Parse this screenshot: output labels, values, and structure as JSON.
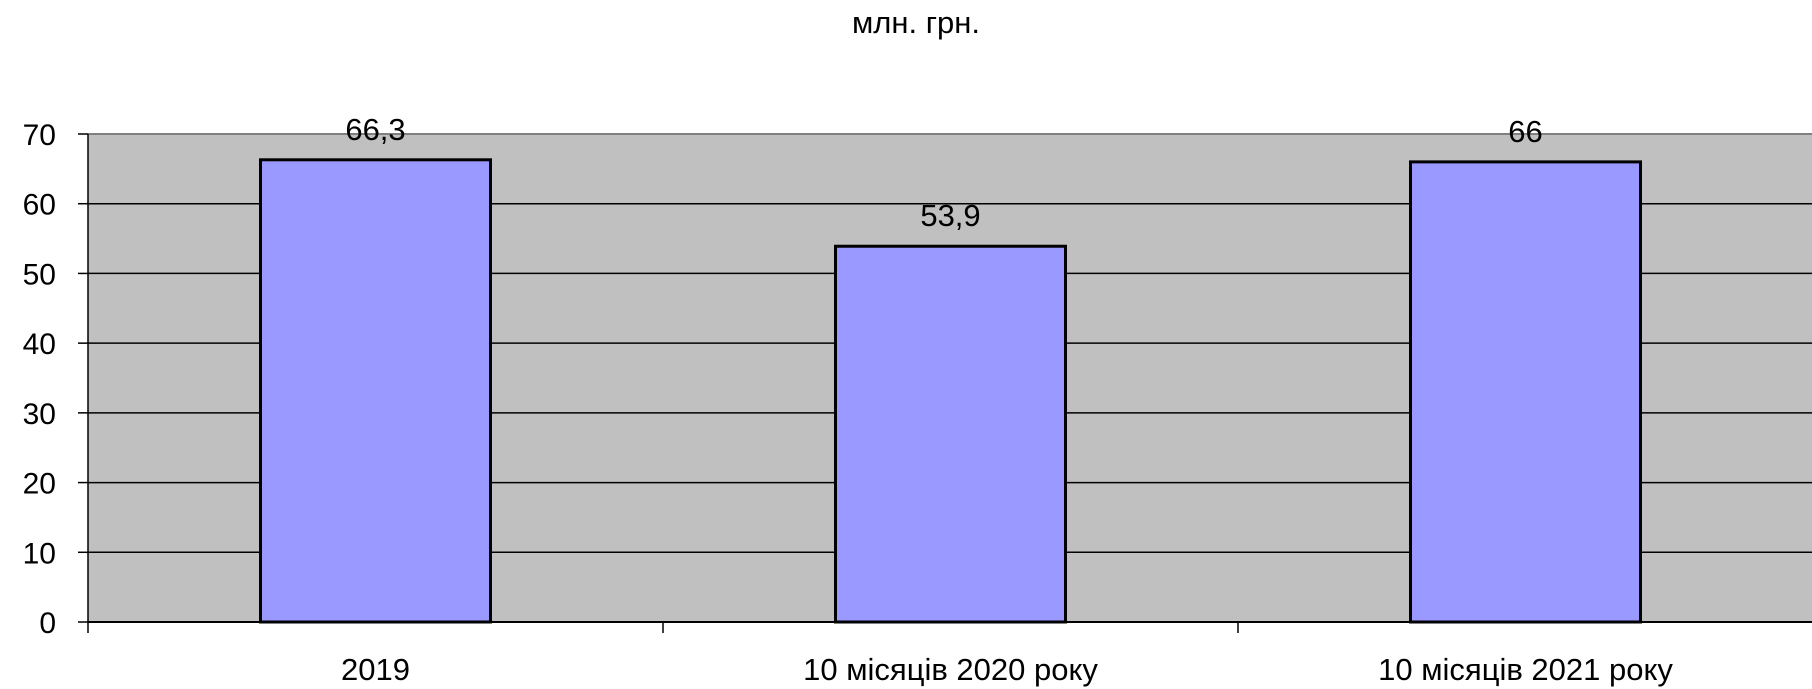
{
  "chart_data": {
    "type": "bar",
    "title": "млн.  грн.",
    "categories": [
      "2019",
      "10 місяців 2020 року",
      "10 місяців 2021 року"
    ],
    "values": [
      66.3,
      53.9,
      66
    ],
    "data_labels": [
      "66,3",
      "53,9",
      "66"
    ],
    "y_ticks": [
      "0",
      "10",
      "20",
      "30",
      "40",
      "50",
      "60",
      "70"
    ],
    "ylim": [
      0,
      70
    ],
    "grid": true,
    "legend": "none",
    "colors": {
      "bar_fill": "#9999ff",
      "bar_stroke": "#000000",
      "plot_background": "#c0c0c0",
      "grid": "#000000"
    }
  }
}
